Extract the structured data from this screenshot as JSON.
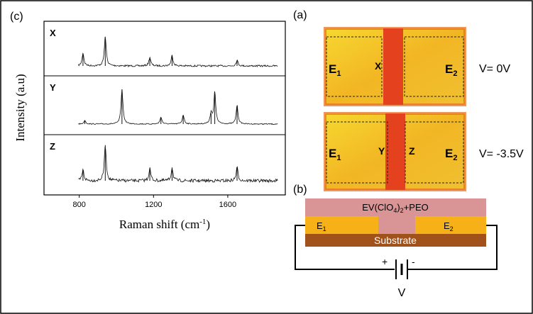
{
  "panel_c": {
    "label": "(c)",
    "y_label": "Intensity (a.u)",
    "x_label": {
      "text": "Raman shift (cm",
      "sup": "-1",
      "close": ")"
    },
    "xlim": [
      610,
      1910
    ],
    "xticks": [
      800,
      1200,
      1600
    ],
    "spectra": [
      {
        "name": "X",
        "range": [
          795,
          1870
        ],
        "peaks": [
          {
            "shift": 820,
            "intensity": 24
          },
          {
            "shift": 940,
            "intensity": 55
          },
          {
            "shift": 1180,
            "intensity": 16
          },
          {
            "shift": 1300,
            "intensity": 20
          },
          {
            "shift": 1650,
            "intensity": 11
          }
        ]
      },
      {
        "name": "Y",
        "range": [
          795,
          1870
        ],
        "peaks": [
          {
            "shift": 830,
            "intensity": 7
          },
          {
            "shift": 1030,
            "intensity": 65
          },
          {
            "shift": 1240,
            "intensity": 13
          },
          {
            "shift": 1360,
            "intensity": 17
          },
          {
            "shift": 1510,
            "intensity": 20
          },
          {
            "shift": 1530,
            "intensity": 60
          },
          {
            "shift": 1650,
            "intensity": 35
          }
        ]
      },
      {
        "name": "Z",
        "range": [
          795,
          1870
        ],
        "peaks": [
          {
            "shift": 820,
            "intensity": 20
          },
          {
            "shift": 940,
            "intensity": 67
          },
          {
            "shift": 1180,
            "intensity": 23
          },
          {
            "shift": 1300,
            "intensity": 25
          },
          {
            "shift": 1650,
            "intensity": 25
          }
        ]
      }
    ]
  },
  "panel_a": {
    "label": "(a)",
    "top": {
      "e1": {
        "main": "E",
        "sub": "1"
      },
      "point": "X",
      "e2": {
        "main": "E",
        "sub": "2"
      },
      "voltage": "V= 0V"
    },
    "bottom": {
      "e1": {
        "main": "E",
        "sub": "1"
      },
      "point_left": "Y",
      "point_right": "Z",
      "e2": {
        "main": "E",
        "sub": "2"
      },
      "voltage": "V= -3.5V"
    }
  },
  "panel_b": {
    "label": "(b)",
    "electrolyte": {
      "a": "EV(ClO",
      "sub1": "4",
      "b": ")",
      "sub2": "2",
      "c": "+PEO"
    },
    "e1": {
      "main": "E",
      "sub": "1"
    },
    "e2": {
      "main": "E",
      "sub": "2"
    },
    "substrate": "Substrate",
    "plus": "+",
    "minus": "-",
    "source": "V"
  }
}
